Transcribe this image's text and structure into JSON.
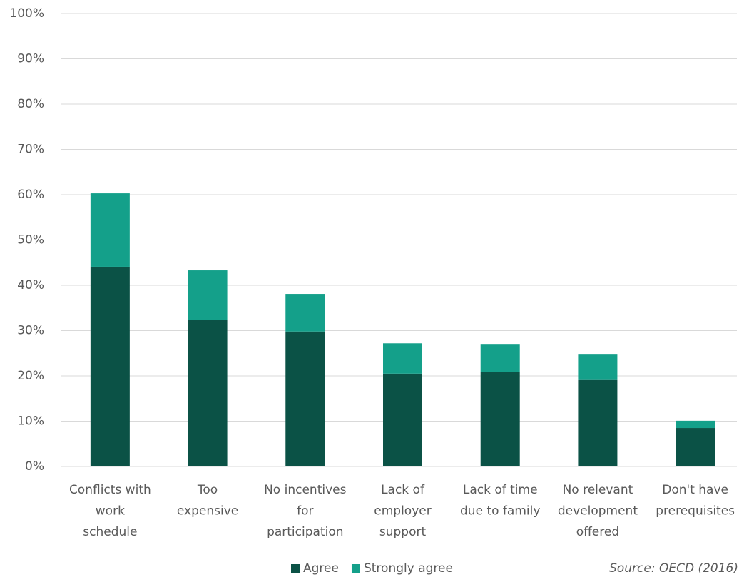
{
  "chart_data": {
    "type": "stacked_bar",
    "categories": [
      "Conflicts with\nwork\nschedule",
      "Too\nexpensive",
      "No incentives\nfor\nparticipation",
      "Lack of\nemployer\nsupport",
      "Lack of time\ndue to family",
      "No relevant\ndevelopment\noffered",
      "Don't have\nprerequisites"
    ],
    "series": [
      {
        "name": "Agree",
        "color": "#0b5246",
        "values": [
          44.1,
          32.3,
          29.8,
          20.5,
          20.8,
          19.1,
          8.5
        ]
      },
      {
        "name": "Strongly agree",
        "color": "#14a08a",
        "values": [
          16.2,
          11.0,
          8.3,
          6.7,
          6.1,
          5.6,
          1.6
        ]
      }
    ],
    "ylim": [
      0,
      100
    ],
    "yticks": [
      {
        "value": 0,
        "label": "0%"
      },
      {
        "value": 10,
        "label": "10%"
      },
      {
        "value": 20,
        "label": "20%"
      },
      {
        "value": 30,
        "label": "30%"
      },
      {
        "value": 40,
        "label": "40%"
      },
      {
        "value": 50,
        "label": "50%"
      },
      {
        "value": 60,
        "label": "60%"
      },
      {
        "value": 70,
        "label": "70%"
      },
      {
        "value": 80,
        "label": "80%"
      },
      {
        "value": 90,
        "label": "90%"
      },
      {
        "value": 100,
        "label": "100%"
      }
    ],
    "grid": true,
    "source": "Source: OECD (2016)"
  }
}
